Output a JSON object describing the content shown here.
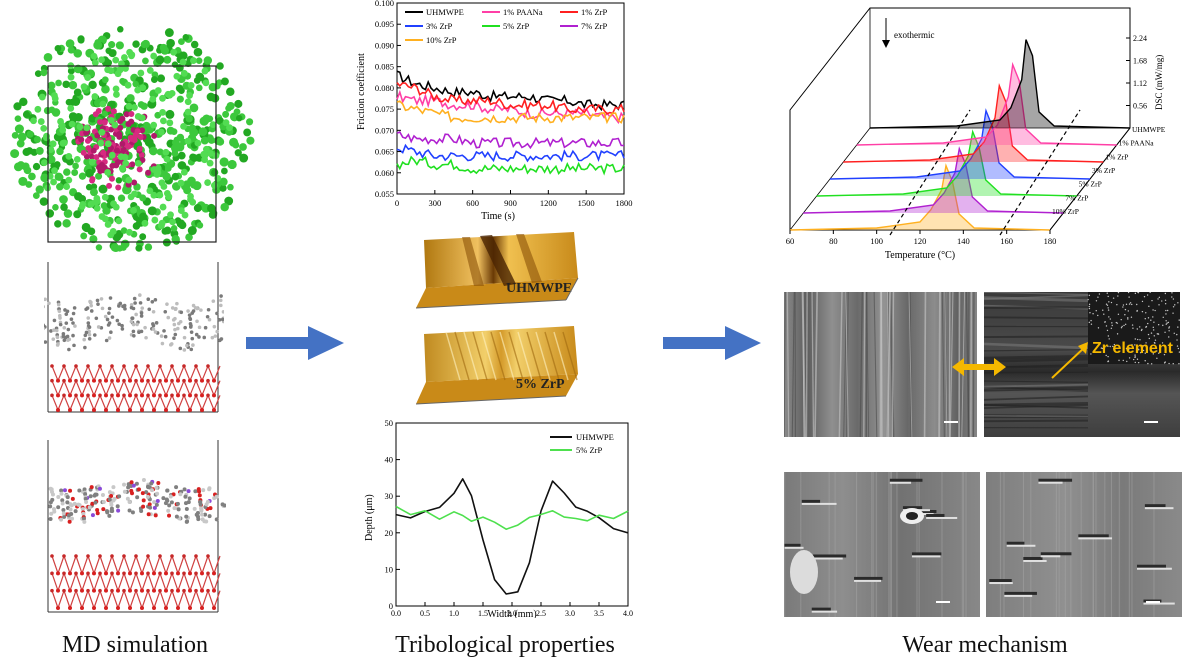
{
  "captions": {
    "left": "MD simulation",
    "middle": "Tribological properties",
    "right": "Wear mechanism"
  },
  "friction_chart": {
    "ylabel": "Friction coefficient",
    "xlabel": "Time (s)",
    "legend": [
      "UHMWPE",
      "1% PAANa",
      "1% ZrP",
      "3% ZrP",
      "5% ZrP",
      "7% ZrP",
      "10% ZrP"
    ],
    "xticks": [
      "0",
      "300",
      "600",
      "900",
      "1200",
      "1500",
      "1800"
    ],
    "yticks": [
      "0.055",
      "0.060",
      "0.065",
      "0.070",
      "0.075",
      "0.080",
      "0.085",
      "0.090",
      "0.095",
      "0.100"
    ]
  },
  "profile3d": {
    "labels": [
      "UHMWPE",
      "5% ZrP"
    ]
  },
  "depth_chart": {
    "ylabel": "Depth (μm)",
    "xlabel": "Width (mm)",
    "legend": [
      "UHMWPE",
      "5% ZrP"
    ],
    "xticks": [
      "0.0",
      "0.5",
      "1.0",
      "1.5",
      "2.0",
      "2.5",
      "3.0",
      "3.5",
      "4.0"
    ],
    "yticks": [
      "0",
      "10",
      "20",
      "30",
      "40",
      "50"
    ]
  },
  "dsc_chart": {
    "annotation": "exothermic",
    "ylabel": "DSC (mW/mg)",
    "xlabel": "Temperature (°C)",
    "zticks": [
      "0.56",
      "1.12",
      "1.68",
      "2.24"
    ],
    "xticks": [
      "60",
      "80",
      "100",
      "120",
      "140",
      "160",
      "180"
    ],
    "series": [
      "UHMWPE",
      "1% PAANa",
      "1% ZrP",
      "3% ZrP",
      "5% ZrP",
      "7% ZrP",
      "10% ZrP"
    ]
  },
  "sem": {
    "label": "Zr element"
  },
  "colors": {
    "uhmwpe": "#000000",
    "paana": "#ff3fa6",
    "zrp1": "#ff2020",
    "zrp3": "#2040ff",
    "zrp5": "#20e020",
    "zrp7": "#b020d0",
    "zrp10": "#ffb020",
    "arrow": "#4472c4",
    "accent": "#f5b800"
  },
  "chart_data": [
    {
      "type": "line",
      "ylabel": "Friction coefficient",
      "xlabel": "Time (s)",
      "xlim": [
        0,
        1800
      ],
      "ylim": [
        0.055,
        0.1
      ],
      "x": [
        0,
        150,
        300,
        450,
        600,
        750,
        900,
        1050,
        1200,
        1350,
        1500,
        1650,
        1800
      ],
      "series": [
        {
          "name": "UHMWPE",
          "values": [
            0.083,
            0.081,
            0.08,
            0.079,
            0.079,
            0.078,
            0.078,
            0.078,
            0.077,
            0.077,
            0.076,
            0.076,
            0.076
          ]
        },
        {
          "name": "1% PAANa",
          "values": [
            0.078,
            0.077,
            0.077,
            0.076,
            0.076,
            0.075,
            0.075,
            0.074,
            0.074,
            0.074,
            0.074,
            0.073,
            0.073
          ]
        },
        {
          "name": "1% ZrP",
          "values": [
            0.081,
            0.08,
            0.078,
            0.077,
            0.077,
            0.077,
            0.076,
            0.076,
            0.076,
            0.075,
            0.075,
            0.075,
            0.075
          ]
        },
        {
          "name": "3% ZrP",
          "values": [
            0.066,
            0.065,
            0.064,
            0.064,
            0.064,
            0.064,
            0.064,
            0.064,
            0.064,
            0.064,
            0.064,
            0.064,
            0.064
          ]
        },
        {
          "name": "5% ZrP",
          "values": [
            0.062,
            0.063,
            0.062,
            0.062,
            0.061,
            0.061,
            0.061,
            0.061,
            0.061,
            0.061,
            0.061,
            0.061,
            0.061
          ]
        },
        {
          "name": "7% ZrP",
          "values": [
            0.069,
            0.068,
            0.068,
            0.068,
            0.067,
            0.067,
            0.067,
            0.067,
            0.067,
            0.067,
            0.067,
            0.067,
            0.067
          ]
        },
        {
          "name": "10% ZrP",
          "values": [
            0.076,
            0.075,
            0.074,
            0.073,
            0.073,
            0.073,
            0.073,
            0.073,
            0.073,
            0.073,
            0.073,
            0.073,
            0.073
          ]
        }
      ]
    },
    {
      "type": "line",
      "ylabel": "Depth (μm)",
      "xlabel": "Width (mm)",
      "xlim": [
        0,
        4
      ],
      "ylim": [
        0,
        50
      ],
      "x": [
        0.0,
        0.25,
        0.5,
        0.75,
        1.0,
        1.15,
        1.3,
        1.5,
        1.7,
        1.9,
        2.1,
        2.3,
        2.5,
        2.7,
        2.9,
        3.1,
        3.3,
        3.5,
        3.75,
        4.0
      ],
      "series": [
        {
          "name": "UHMWPE",
          "values": [
            25,
            24,
            26,
            27,
            31,
            35,
            30,
            18,
            7,
            3,
            4,
            12,
            26,
            34,
            31,
            27,
            26,
            24,
            21,
            20
          ]
        },
        {
          "name": "5% ZrP",
          "values": [
            27,
            25,
            26,
            24,
            26,
            25,
            23,
            24,
            23,
            21,
            22,
            24,
            25,
            26,
            24,
            24,
            23,
            25,
            24,
            26
          ]
        }
      ]
    },
    {
      "type": "line",
      "ylabel": "DSC (mW/mg)",
      "xlabel": "Temperature (°C)",
      "xlim": [
        60,
        180
      ],
      "x": [
        60,
        100,
        120,
        125,
        130,
        132,
        135,
        138,
        145,
        180
      ],
      "series": [
        {
          "name": "UHMWPE",
          "values": [
            0.0,
            0.05,
            0.2,
            0.5,
            1.2,
            2.2,
            1.8,
            0.4,
            0.05,
            0.0
          ]
        },
        {
          "name": "1% PAANa",
          "values": [
            0.0,
            0.05,
            0.2,
            0.5,
            1.2,
            2.0,
            1.6,
            0.4,
            0.05,
            0.0
          ]
        },
        {
          "name": "1% ZrP",
          "values": [
            0.0,
            0.05,
            0.2,
            0.5,
            1.1,
            1.9,
            1.5,
            0.4,
            0.05,
            0.0
          ]
        },
        {
          "name": "3% ZrP",
          "values": [
            0.0,
            0.05,
            0.2,
            0.5,
            1.0,
            1.7,
            1.3,
            0.4,
            0.05,
            0.0
          ]
        },
        {
          "name": "5% ZrP",
          "values": [
            0.0,
            0.05,
            0.2,
            0.5,
            1.0,
            1.6,
            1.2,
            0.4,
            0.05,
            0.0
          ]
        },
        {
          "name": "7% ZrP",
          "values": [
            0.0,
            0.05,
            0.2,
            0.5,
            1.0,
            1.6,
            1.2,
            0.4,
            0.05,
            0.0
          ]
        },
        {
          "name": "10% ZrP",
          "values": [
            0.0,
            0.05,
            0.2,
            0.5,
            1.0,
            1.6,
            1.2,
            0.4,
            0.05,
            0.0
          ]
        }
      ]
    }
  ]
}
